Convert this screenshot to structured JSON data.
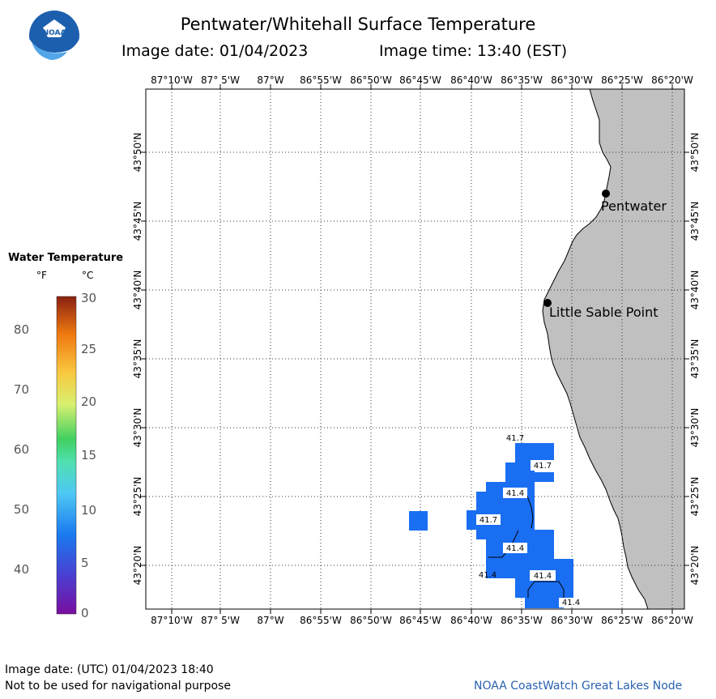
{
  "header": {
    "title": "Pentwater/Whitehall Surface Temperature",
    "image_date": "Image date: 01/04/2023",
    "image_time": "Image time: 13:40 (EST)"
  },
  "logo": {
    "text": "NOAA"
  },
  "legend": {
    "title": "Water Temperature",
    "unit_f": "°F",
    "unit_c": "°C",
    "f_ticks": [
      "80",
      "70",
      "60",
      "50",
      "40"
    ],
    "c_ticks": [
      "30",
      "25",
      "20",
      "15",
      "10",
      "5",
      "0"
    ]
  },
  "map": {
    "lon_labels": [
      "87°10'W",
      "87° 5'W",
      "87°W",
      "86°55'W",
      "86°50'W",
      "86°45'W",
      "86°40'W",
      "86°35'W",
      "86°30'W",
      "86°25'W",
      "86°20'W"
    ],
    "lat_labels": [
      "43°50'N",
      "43°45'N",
      "43°40'N",
      "43°35'N",
      "43°30'N",
      "43°25'N",
      "43°20'N"
    ],
    "places": [
      {
        "name": "Pentwater"
      },
      {
        "name": "Little Sable Point"
      }
    ],
    "temperature_labels": [
      "41.7",
      "41.7",
      "41.4",
      "41.7",
      "41.4",
      "41.4",
      "41.4",
      "41.4"
    ],
    "colors": {
      "land": "#c0c0c0",
      "water_data": "#1a6ef2",
      "background": "#ffffff"
    }
  },
  "footer": {
    "utc_date": "Image date: (UTC) 01/04/2023   18:40",
    "disclaimer": "Not to be used for navigational purpose",
    "credit": "NOAA CoastWatch Great Lakes Node"
  }
}
